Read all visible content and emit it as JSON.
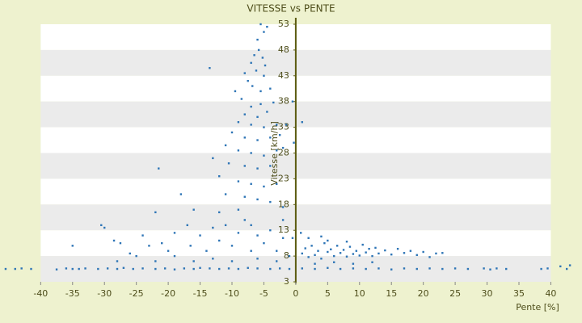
{
  "chart_data": {
    "type": "scatter",
    "title": "VITESSE vs PENTE",
    "x_label": "Pente [%]",
    "y_label": "Vitesse [km/h]",
    "color": "#2e75b6",
    "grid": true,
    "xlim": [
      -46,
      44
    ],
    "ylim": [
      3,
      53
    ],
    "xticks": [
      -40,
      -35,
      -30,
      -25,
      -20,
      -15,
      -10,
      -5,
      0,
      5,
      10,
      15,
      20,
      25,
      30,
      35,
      40
    ],
    "yticks": [
      3,
      8,
      13,
      18,
      23,
      28,
      33,
      38,
      43,
      48,
      53
    ],
    "x": [
      -45.5,
      -44,
      -43,
      -41.5,
      -37.5,
      -36,
      -35,
      -34,
      -33,
      -31,
      -29.5,
      -28,
      -27,
      -25.5,
      -24,
      -22,
      -20.5,
      -19,
      -17.5,
      -16,
      -15,
      -13.5,
      -12,
      -10.5,
      -9,
      -7.5,
      -6,
      -4,
      -2.5,
      -1,
      1,
      3,
      5,
      7,
      9,
      11,
      13,
      15,
      17,
      19,
      21,
      23,
      25,
      27,
      29.5,
      30.5,
      31.5,
      33,
      38.5,
      39.5,
      41.5,
      42.5,
      43,
      1,
      1.5,
      2,
      2.5,
      3,
      3.5,
      4,
      4.5,
      5,
      5.5,
      6,
      6.5,
      7,
      7.5,
      8,
      8.5,
      9,
      9.5,
      10,
      10.5,
      11,
      11.5,
      12,
      12.5,
      13,
      14,
      15,
      16,
      17,
      18,
      19,
      20,
      21,
      22,
      23,
      3,
      6,
      9,
      12,
      2,
      5,
      8,
      -0.5,
      0.8,
      4,
      -5.5,
      -5,
      -4.5,
      -6,
      -5.8,
      -5.2,
      -6.5,
      -4.8,
      -7,
      -6.2,
      -5,
      -7.5,
      -8,
      -6.8,
      -5.5,
      -4,
      -9.5,
      -8.5,
      -7,
      -5.5,
      -4.5,
      -3.5,
      -6,
      -8,
      -9,
      -7,
      -5,
      -3,
      -10,
      -8,
      -6,
      -4,
      -2.5,
      -11,
      -9,
      -7,
      -5,
      -3,
      -13,
      -10.5,
      -8,
      -6,
      -4,
      -12,
      -9,
      -7,
      -5,
      -3,
      -11,
      -8,
      -6,
      -4,
      -2,
      -13.5,
      -21.5,
      1,
      -0.5,
      -0.3,
      -1.5,
      -2,
      -30.5,
      -30,
      -35,
      -28.5,
      -27.5,
      -26,
      -24,
      -23,
      -22,
      -21,
      -20,
      -19,
      -18,
      -17,
      -16,
      -16.5,
      -15,
      -14,
      -13,
      -12,
      -11,
      -10,
      -10,
      -9,
      -8,
      -7,
      -6,
      -6,
      -5,
      -4,
      -3,
      -2,
      -1,
      -13,
      -16,
      -19,
      -22,
      -25,
      -28,
      -12,
      -9,
      -7,
      -3,
      -2
    ],
    "values": [
      5.5,
      5.5,
      5.6,
      5.5,
      5.4,
      5.6,
      5.5,
      5.5,
      5.6,
      5.5,
      5.6,
      5.5,
      5.7,
      5.5,
      5.6,
      5.5,
      5.6,
      5.4,
      5.6,
      5.5,
      5.7,
      5.6,
      5.5,
      5.6,
      5.5,
      5.7,
      5.6,
      5.5,
      5.6,
      5.5,
      5.6,
      5.5,
      5.7,
      5.5,
      5.6,
      5.5,
      5.6,
      5.4,
      5.6,
      5.5,
      5.6,
      5.5,
      5.6,
      5.5,
      5.6,
      5.4,
      5.6,
      5.5,
      5.5,
      5.6,
      6,
      5.5,
      6.2,
      8.5,
      9.5,
      7.8,
      10,
      8.2,
      9,
      7.5,
      10.5,
      8.8,
      9.3,
      8,
      10,
      8.6,
      9.2,
      7.9,
      9.8,
      8.4,
      9,
      8.1,
      10.2,
      8.7,
      9.4,
      8,
      9.6,
      8.5,
      9.1,
      8.3,
      9.4,
      8.6,
      9,
      8.2,
      8.8,
      7.8,
      8.5,
      8.6,
      6.5,
      6.8,
      6.5,
      6.8,
      11.5,
      11,
      10.8,
      11.5,
      12.5,
      11.8,
      53,
      51.5,
      52.5,
      50,
      48,
      46.5,
      47,
      45,
      45.5,
      44,
      43,
      42,
      43.5,
      41,
      40,
      40.5,
      40,
      38.5,
      37,
      37.5,
      36,
      37.8,
      35,
      35.5,
      34,
      33.5,
      33,
      33.5,
      32,
      31,
      30.5,
      31,
      31.5,
      29.5,
      28.5,
      28,
      27.5,
      28.5,
      27,
      26,
      25.5,
      25,
      25.5,
      23.5,
      22.5,
      22,
      21.5,
      22,
      20,
      19.5,
      19,
      18.5,
      17.5,
      44.5,
      25,
      34,
      38,
      30,
      33.5,
      29,
      14,
      13.5,
      10,
      11,
      10.5,
      8.5,
      12,
      10,
      16.5,
      10.5,
      9,
      12.5,
      20,
      14,
      17,
      10,
      12,
      9,
      13.5,
      11,
      14,
      10,
      7,
      12.5,
      15,
      9,
      12,
      7.5,
      10.5,
      13,
      9,
      11.5,
      8,
      7.5,
      7,
      8,
      7,
      8,
      7,
      16.5,
      17,
      14,
      7,
      15
    ]
  }
}
